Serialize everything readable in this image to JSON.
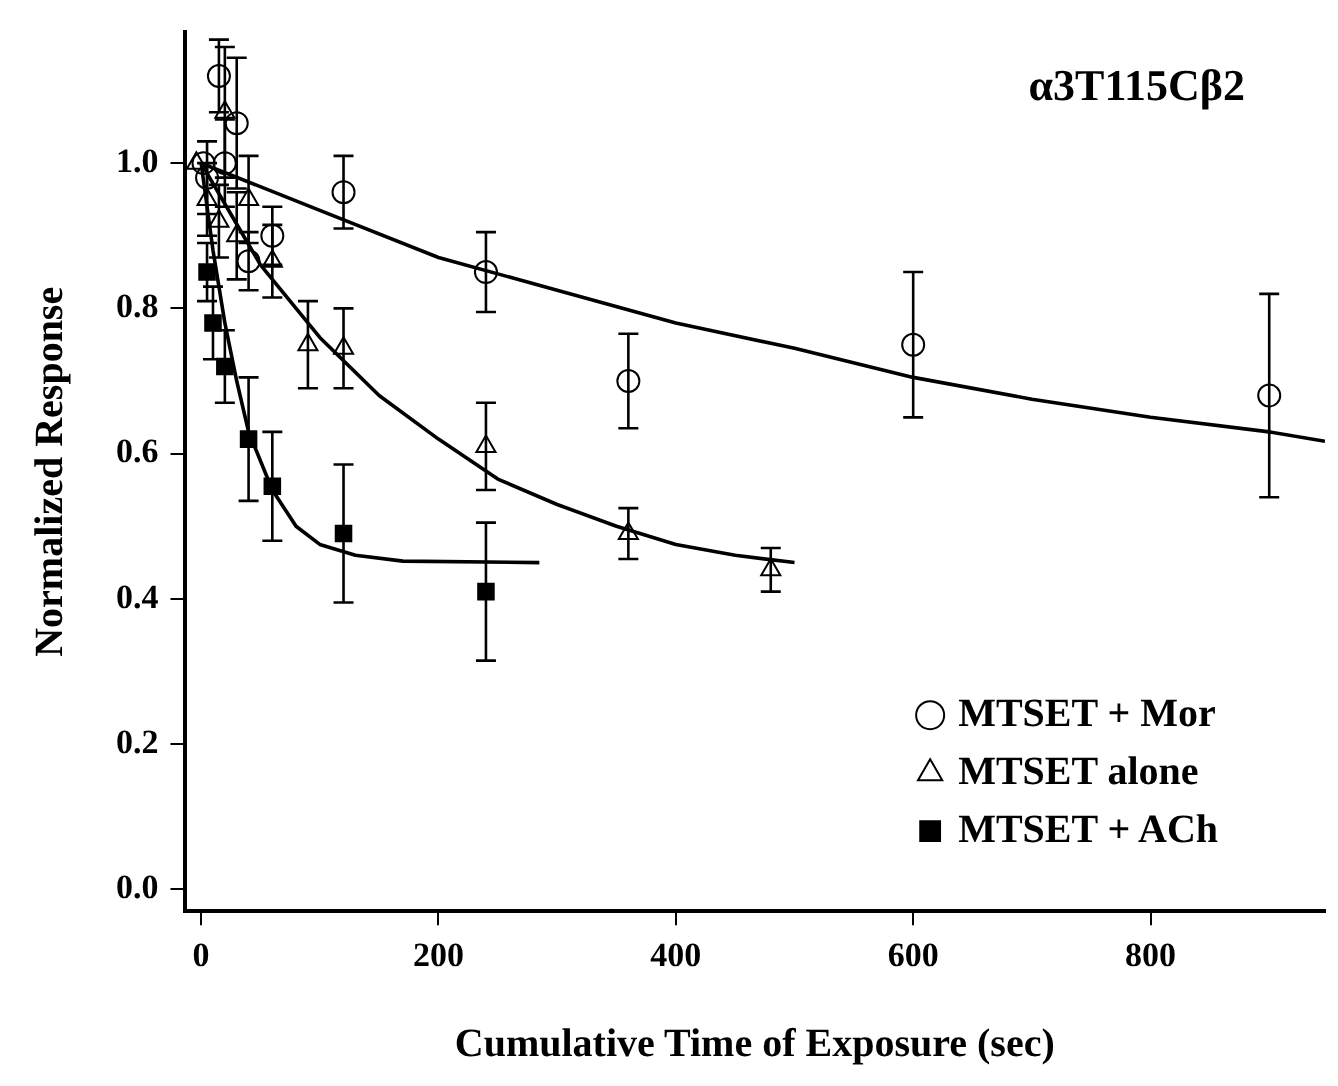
{
  "chart_data": {
    "type": "scatter",
    "title": "α3T115Cβ2",
    "xlabel": "Cumulative Time of Exposure (sec)",
    "ylabel": "Normalized Response",
    "xlim": [
      -14,
      947
    ],
    "xticks": [
      0,
      200,
      400,
      600,
      800
    ],
    "ylim": [
      -0.03,
      1.18
    ],
    "yticks": [
      {
        "value": 0,
        "label": "0.0"
      },
      0.2,
      0.4,
      0.6,
      0.8,
      {
        "value": 1,
        "label": "1.0"
      }
    ],
    "grid": false,
    "legend": "bottom right",
    "series": [
      {
        "name": "MTSET + Mor",
        "marker": "circle",
        "color": "#000000",
        "x": [
          2,
          5,
          15,
          20,
          30,
          40,
          60,
          120,
          240,
          360,
          600,
          900
        ],
        "values": [
          1.0,
          0.98,
          1.12,
          1.0,
          1.055,
          0.865,
          0.9,
          0.96,
          0.85,
          0.7,
          0.75,
          0.68
        ],
        "errors": [
          null,
          0.05,
          0.05,
          0.06,
          0.09,
          0.04,
          0.04,
          0.05,
          0.055,
          0.065,
          0.1,
          0.14
        ]
      },
      {
        "name": "MTSET alone",
        "marker": "triangle",
        "color": "#000000",
        "x": [
          -4,
          5,
          15,
          20,
          30,
          40,
          60,
          90,
          120,
          240,
          360,
          480
        ],
        "values": [
          1.0,
          0.95,
          0.92,
          1.07,
          0.9,
          0.95,
          0.865,
          0.75,
          0.745,
          0.61,
          0.49,
          0.44
        ],
        "errors": [
          null,
          0.05,
          0.05,
          0.09,
          0.06,
          0.06,
          0.05,
          0.06,
          0.055,
          0.06,
          0.035,
          0.03
        ]
      },
      {
        "name": "MTSET + ACh",
        "marker": "square",
        "color": "#000000",
        "x": [
          5,
          10,
          20,
          40,
          60,
          120,
          240
        ],
        "values": [
          0.85,
          0.78,
          0.72,
          0.62,
          0.555,
          0.49,
          0.41
        ],
        "errors": [
          0.04,
          0.05,
          0.05,
          0.085,
          0.075,
          0.095,
          0.095
        ]
      },
      {
        "type": "line",
        "marker": "none",
        "color": "#000000",
        "x": [
          0,
          100,
          200,
          300,
          400,
          500,
          600,
          700,
          800,
          900,
          947
        ],
        "values": [
          1.0,
          0.935,
          0.87,
          0.825,
          0.78,
          0.745,
          0.705,
          0.675,
          0.65,
          0.63,
          0.617
        ]
      },
      {
        "type": "line",
        "marker": "none",
        "color": "#000000",
        "x": [
          0,
          25,
          50,
          100,
          150,
          200,
          250,
          300,
          350,
          400,
          450,
          500
        ],
        "values": [
          1.0,
          0.93,
          0.86,
          0.76,
          0.68,
          0.62,
          0.565,
          0.53,
          0.5,
          0.475,
          0.46,
          0.45
        ]
      },
      {
        "type": "line",
        "marker": "none",
        "color": "#000000",
        "x": [
          0,
          10,
          20,
          30,
          40,
          60,
          80,
          100,
          130,
          170,
          285
        ],
        "values": [
          1.0,
          0.88,
          0.78,
          0.7,
          0.63,
          0.55,
          0.5,
          0.475,
          0.46,
          0.452,
          0.45
        ]
      }
    ]
  }
}
